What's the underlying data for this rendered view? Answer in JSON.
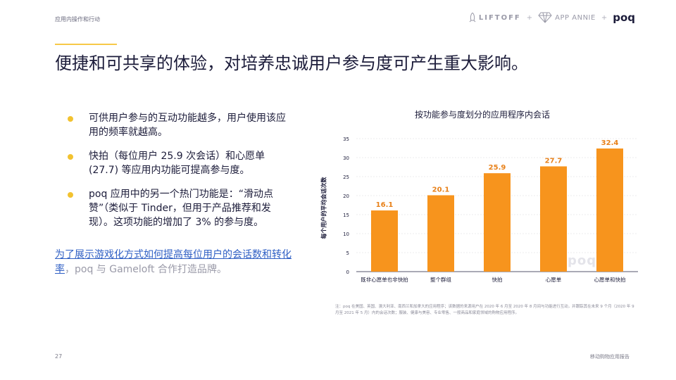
{
  "header": {
    "section_label": "应用内操作和行动",
    "brands": [
      "LIFTOFF",
      "APP ANNIE",
      "poq"
    ],
    "separator": "+"
  },
  "title": "便捷和可共享的体验，对培养忠诚用户参与度可产生重大影响。",
  "bullets": [
    "可供用户参与的互动功能越多，用户使用该应用的频率就越高。",
    "快拍（每位用户 25.9 次会话）和心愿单 (27.7) 等应用内功能可提高参与度。",
    "poq 应用中的另一个热门功能是：“滑动点赞”（类似于 Tinder，但用于产品推荐和发现）。这项功能的增加了 3% 的参与度。"
  ],
  "cta": {
    "link_text": "为了展示游戏化方式如何提高每位用户的会话数和转化率",
    "rest_text": "，poq 与 Gameloft 合作打造品牌。"
  },
  "chart_data": {
    "type": "bar",
    "title": "按功能参与度划分的应用程序内会话",
    "ylabel": "每个用户的平均会话次数",
    "xlabel": "",
    "categories": [
      "既非心愿单也非快拍",
      "整个群组",
      "快拍",
      "心愿单",
      "心愿单和快拍"
    ],
    "values": [
      16.1,
      20.1,
      25.9,
      27.7,
      32.4
    ],
    "ylim": [
      0,
      35
    ],
    "yticks": [
      0,
      5,
      10,
      15,
      20,
      25,
      30,
      35
    ],
    "grid": true,
    "legend": "none",
    "bar_color": "#f7941d",
    "label_color": "#e8811a",
    "watermark": "poq"
  },
  "footnote": "注：poq 在美国、英国、澳大利亚、南西兰和加拿大的应用程序；该数据的来源用户在 2020 年 6 月至 2020 年 8 月间与功能进行互动，并跟踪其在未来 9 个月（2020 年 9 月至 2021 年 5 月）内的会话次数；服装、健康与美容、专业零售、一般商品和家庭领域的购物应用程序。",
  "footer": {
    "page_number": "27",
    "report_name": "移动购物应用报告"
  }
}
